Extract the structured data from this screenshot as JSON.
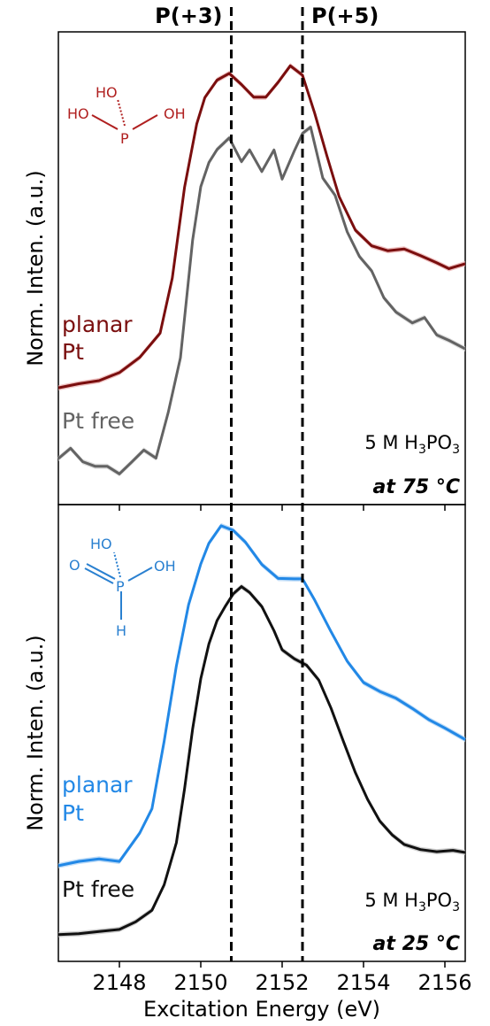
{
  "chart_data": {
    "type": "line",
    "shared": {
      "xlabel": "Excitation Energy (eV)",
      "xlim": [
        2146.5,
        2156.5
      ],
      "xticks": [
        2148,
        2150,
        2152,
        2154,
        2156
      ],
      "reference_lines": [
        {
          "label": "P(+3)",
          "x": 2150.75
        },
        {
          "label": "P(+5)",
          "x": 2152.5
        }
      ]
    },
    "panels": [
      {
        "ylabel": "Norm. Inten. (a.u.)",
        "ylim": [
          0,
          1
        ],
        "concentration_prefix": "5 M H",
        "concentration_sub1": "3",
        "concentration_mid": "PO",
        "concentration_sub2": "3",
        "temperature": "at 75 °C",
        "molecule_labels": {
          "top": "HO",
          "left": "HO",
          "right": "OH",
          "center": "P"
        },
        "series": [
          {
            "name": "planar Pt",
            "label_lines": [
              "planar",
              "Pt"
            ],
            "color": "#7a0e0e",
            "band_color": "#e8a8a8",
            "x": [
              2146.5,
              2147.0,
              2147.5,
              2148.0,
              2148.5,
              2149.0,
              2149.3,
              2149.6,
              2149.9,
              2150.1,
              2150.4,
              2150.7,
              2151.0,
              2151.3,
              2151.6,
              2151.9,
              2152.2,
              2152.5,
              2152.8,
              2153.1,
              2153.4,
              2153.8,
              2154.2,
              2154.6,
              2155.0,
              2155.4,
              2155.8,
              2156.1,
              2156.5
            ],
            "y": [
              0.233,
              0.242,
              0.249,
              0.267,
              0.301,
              0.355,
              0.478,
              0.68,
              0.822,
              0.881,
              0.92,
              0.935,
              0.91,
              0.882,
              0.882,
              0.915,
              0.952,
              0.931,
              0.846,
              0.751,
              0.66,
              0.585,
              0.55,
              0.539,
              0.543,
              0.528,
              0.512,
              0.499,
              0.51
            ]
          },
          {
            "name": "Pt free",
            "label_lines": [
              "Pt free"
            ],
            "color": "#636363",
            "band_color": "#cfcfcf",
            "x": [
              2146.5,
              2146.8,
              2147.1,
              2147.4,
              2147.7,
              2148.0,
              2148.3,
              2148.6,
              2148.9,
              2149.2,
              2149.5,
              2149.8,
              2150.0,
              2150.2,
              2150.4,
              2150.7,
              2151.0,
              2151.2,
              2151.5,
              2151.8,
              2152.0,
              2152.3,
              2152.5,
              2152.7,
              2153.0,
              2153.3,
              2153.6,
              2153.9,
              2154.2,
              2154.5,
              2154.8,
              2155.2,
              2155.5,
              2155.8,
              2156.1,
              2156.5
            ],
            "y": [
              0.075,
              0.098,
              0.068,
              0.058,
              0.058,
              0.041,
              0.067,
              0.094,
              0.076,
              0.178,
              0.3,
              0.563,
              0.682,
              0.736,
              0.765,
              0.791,
              0.738,
              0.764,
              0.716,
              0.764,
              0.699,
              0.762,
              0.801,
              0.815,
              0.701,
              0.663,
              0.581,
              0.526,
              0.494,
              0.434,
              0.402,
              0.378,
              0.39,
              0.351,
              0.339,
              0.32
            ]
          }
        ]
      },
      {
        "ylabel": "Norm. Inten. (a.u.)",
        "ylim": [
          0,
          1
        ],
        "concentration_prefix": "5 M H",
        "concentration_sub1": "3",
        "concentration_mid": "PO",
        "concentration_sub2": "3",
        "temperature": "at 25 °C",
        "molecule_labels": {
          "top": "HO",
          "left": "O",
          "right": "OH",
          "center": "P",
          "bottom": "H"
        },
        "series": [
          {
            "name": "planar Pt",
            "label_lines": [
              "planar",
              "Pt"
            ],
            "color": "#2288e6",
            "band_color": "#a8d0f5",
            "x": [
              2146.5,
              2147.0,
              2147.5,
              2148.0,
              2148.5,
              2148.8,
              2149.1,
              2149.4,
              2149.7,
              2150.0,
              2150.2,
              2150.5,
              2150.8,
              2151.1,
              2151.5,
              2151.9,
              2152.3,
              2152.5,
              2152.8,
              2153.2,
              2153.6,
              2154.0,
              2154.4,
              2154.8,
              2155.2,
              2155.6,
              2156.0,
              2156.5
            ],
            "y": [
              0.196,
              0.206,
              0.212,
              0.206,
              0.273,
              0.33,
              0.489,
              0.666,
              0.81,
              0.906,
              0.955,
              0.996,
              0.985,
              0.957,
              0.905,
              0.872,
              0.871,
              0.871,
              0.821,
              0.747,
              0.677,
              0.627,
              0.606,
              0.59,
              0.566,
              0.54,
              0.52,
              0.493
            ]
          },
          {
            "name": "Pt free",
            "label_lines": [
              "Pt free"
            ],
            "color": "#111111",
            "band_color": "#bdbdbd",
            "x": [
              2146.5,
              2147.0,
              2147.5,
              2148.0,
              2148.4,
              2148.8,
              2149.1,
              2149.4,
              2149.6,
              2149.8,
              2150.0,
              2150.2,
              2150.4,
              2150.6,
              2150.8,
              2151.0,
              2151.2,
              2151.5,
              2151.8,
              2152.0,
              2152.3,
              2152.6,
              2152.9,
              2153.2,
              2153.5,
              2153.8,
              2154.1,
              2154.4,
              2154.7,
              2155.0,
              2155.4,
              2155.8,
              2156.2,
              2156.5
            ],
            "y": [
              0.034,
              0.036,
              0.041,
              0.046,
              0.064,
              0.091,
              0.151,
              0.25,
              0.376,
              0.518,
              0.636,
              0.718,
              0.773,
              0.806,
              0.836,
              0.853,
              0.839,
              0.806,
              0.749,
              0.704,
              0.683,
              0.668,
              0.633,
              0.567,
              0.49,
              0.415,
              0.352,
              0.301,
              0.269,
              0.246,
              0.234,
              0.229,
              0.232,
              0.227
            ]
          }
        ]
      }
    ]
  }
}
